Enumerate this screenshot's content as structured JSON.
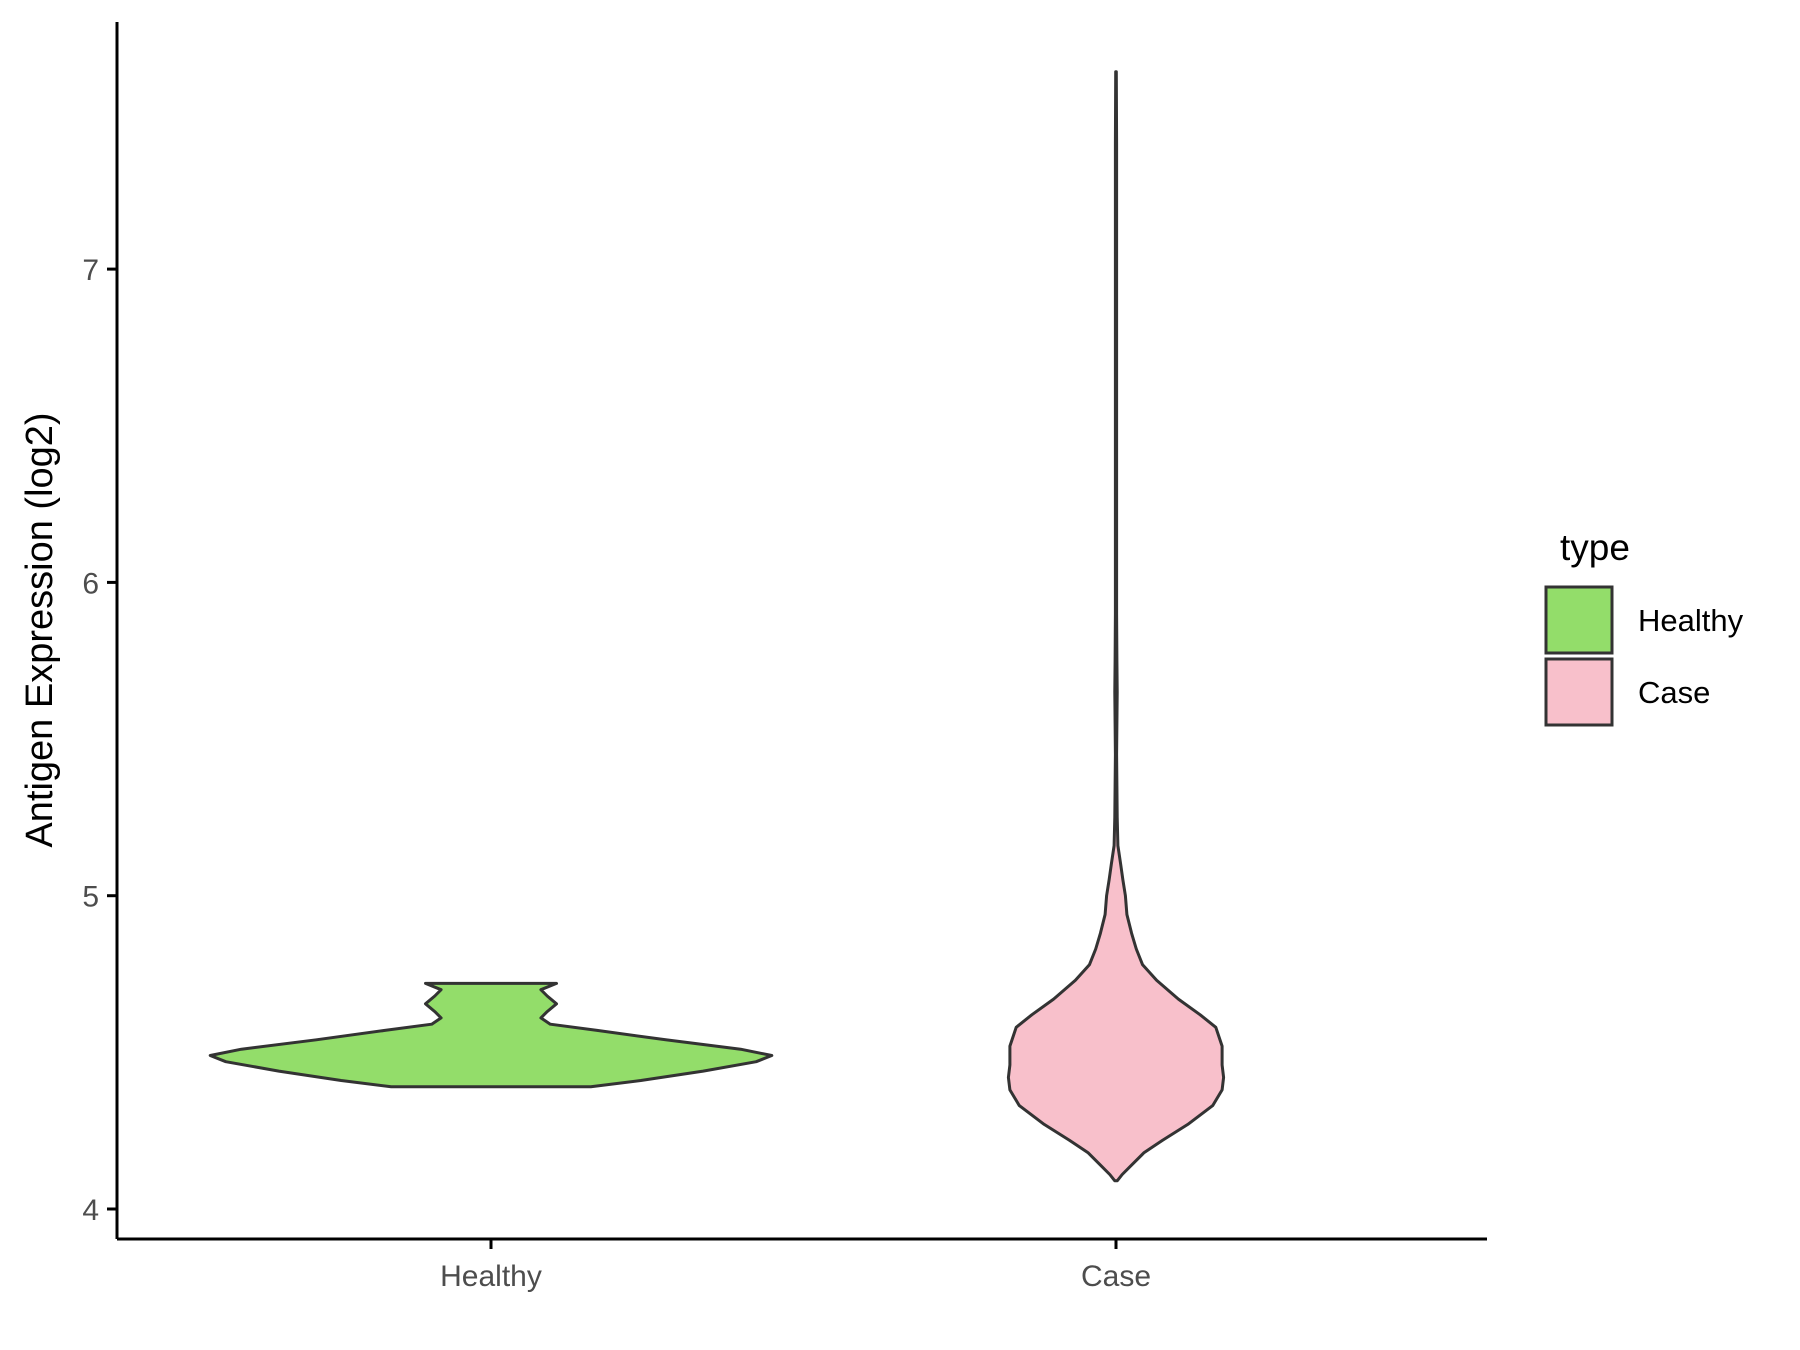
{
  "chart_data": {
    "type": "violin",
    "title": "",
    "xlabel": "",
    "ylabel": "Antigen Expression (log2)",
    "ylim": [
      3.9,
      7.8
    ],
    "y_ticks": [
      "4",
      "5",
      "6",
      "7"
    ],
    "categories": [
      "Healthy",
      "Case"
    ],
    "grid": false,
    "legend": {
      "title": "type",
      "position": "right",
      "entries": [
        {
          "label": "Healthy",
          "color": "#93dd6a"
        },
        {
          "label": "Case",
          "color": "#f8c0cb"
        }
      ]
    },
    "series": [
      {
        "name": "Healthy",
        "color": "#93dd6a",
        "min": 4.39,
        "max": 4.72,
        "density_profile": [
          [
            4.39,
            0.32
          ],
          [
            4.41,
            0.48
          ],
          [
            4.44,
            0.68
          ],
          [
            4.47,
            0.85
          ],
          [
            4.49,
            0.9
          ],
          [
            4.51,
            0.8
          ],
          [
            4.54,
            0.56
          ],
          [
            4.57,
            0.34
          ],
          [
            4.59,
            0.19
          ],
          [
            4.61,
            0.16
          ],
          [
            4.63,
            0.18
          ],
          [
            4.655,
            0.21
          ],
          [
            4.68,
            0.18
          ],
          [
            4.7,
            0.16
          ],
          [
            4.72,
            0.21
          ]
        ]
      },
      {
        "name": "Case",
        "color": "#f8c0cb",
        "min": 4.09,
        "max": 7.63,
        "density_profile": [
          [
            4.09,
            0.004
          ],
          [
            4.11,
            0.02
          ],
          [
            4.14,
            0.05
          ],
          [
            4.18,
            0.09
          ],
          [
            4.22,
            0.15
          ],
          [
            4.27,
            0.23
          ],
          [
            4.33,
            0.31
          ],
          [
            4.38,
            0.34
          ],
          [
            4.42,
            0.345
          ],
          [
            4.46,
            0.34
          ],
          [
            4.52,
            0.34
          ],
          [
            4.58,
            0.32
          ],
          [
            4.62,
            0.27
          ],
          [
            4.67,
            0.2
          ],
          [
            4.73,
            0.13
          ],
          [
            4.78,
            0.085
          ],
          [
            4.83,
            0.065
          ],
          [
            4.88,
            0.05
          ],
          [
            4.94,
            0.035
          ],
          [
            5.0,
            0.03
          ],
          [
            5.05,
            0.022
          ],
          [
            5.1,
            0.015
          ],
          [
            5.16,
            0.006
          ],
          [
            5.25,
            0.004
          ],
          [
            5.35,
            0.003
          ],
          [
            5.45,
            0.002
          ],
          [
            5.55,
            0.003
          ],
          [
            5.65,
            0.004
          ],
          [
            5.75,
            0.003
          ],
          [
            5.9,
            0.002
          ],
          [
            6.2,
            0.002
          ],
          [
            6.6,
            0.002
          ],
          [
            7.0,
            0.002
          ],
          [
            7.4,
            0.002
          ],
          [
            7.63,
            0.001
          ]
        ]
      }
    ]
  }
}
